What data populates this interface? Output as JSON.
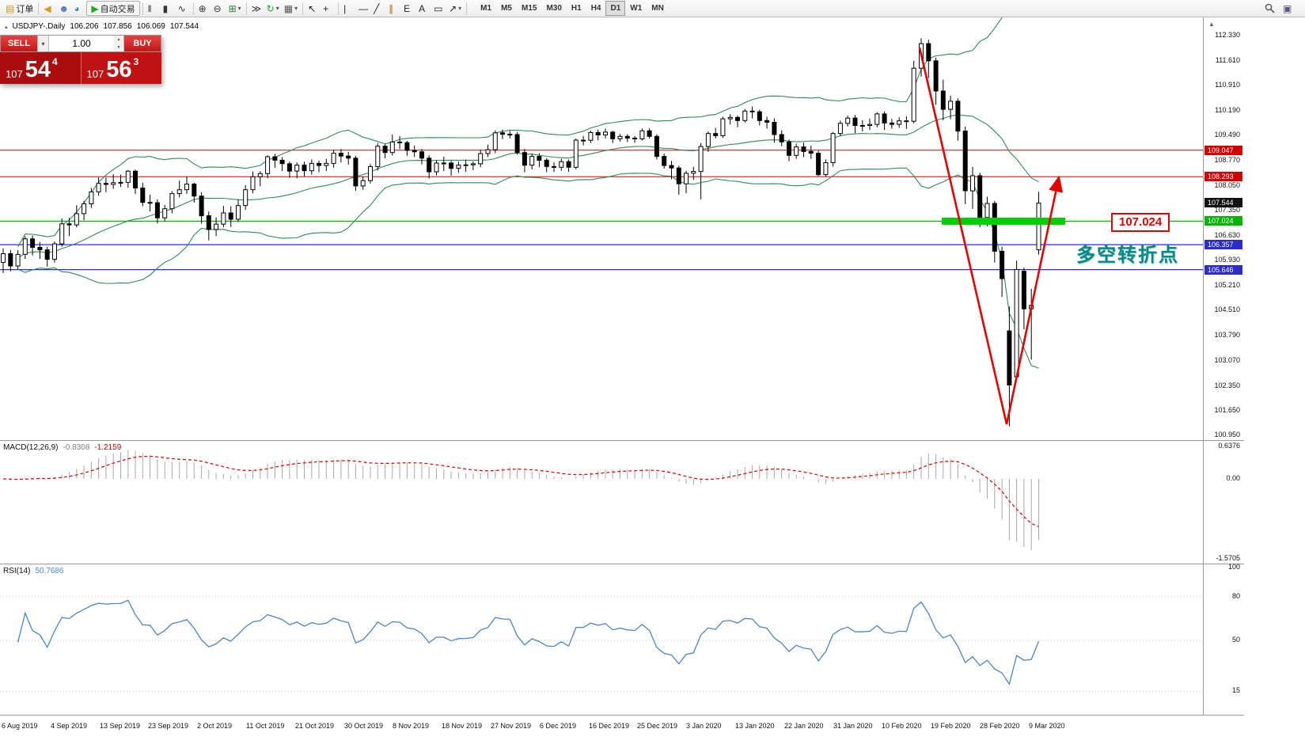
{
  "icons": {
    "caret_down": "▾",
    "stepper_up": "▲",
    "stepper_down": "▼",
    "windows_glyph": "▣",
    "scroll_arrow": "▲",
    "symbol_marker": "▴"
  },
  "colors": {
    "band": "#2E8B57",
    "bull": "#ffffff",
    "bear": "#000000",
    "macd_hist": "#a8a8a8",
    "macd_signal": "#dd0000",
    "rsi": "#4a86c8"
  },
  "toolbar": {
    "buttons": [
      {
        "name": "new-order-button",
        "glyph": "▤",
        "color": "#c99b1f",
        "label": "订单",
        "sep_after": true
      },
      {
        "name": "megaphone-button",
        "glyph": "◀",
        "color": "#d4a017"
      },
      {
        "name": "profile-button",
        "glyph": "☻",
        "color": "#4a78b8"
      },
      {
        "name": "community-button",
        "glyph": "◕",
        "color": "#3b8f8f"
      },
      {
        "name": "autotrading-button",
        "glyph": "▶",
        "color": "#1faa1f",
        "label": "自动交易",
        "boxed": true,
        "sep_after": true
      },
      {
        "name": "bar-chart-mode-button",
        "glyph": "‖",
        "color": "#333333"
      },
      {
        "name": "candlestick-mode-button",
        "glyph": "▮",
        "color": "#333333"
      },
      {
        "name": "line-chart-mode-button",
        "glyph": "∿",
        "color": "#333333",
        "sep_after": true
      },
      {
        "name": "zoom-in-button",
        "glyph": "⊕",
        "color": "#333333"
      },
      {
        "name": "zoom-out-button",
        "glyph": "⊖",
        "color": "#333333"
      },
      {
        "name": "tile-windows-button",
        "glyph": "⊞",
        "color": "#2f7d2f",
        "caret": true,
        "sep_after": true
      },
      {
        "name": "auto-scroll-button",
        "glyph": "≫",
        "color": "#333333"
      },
      {
        "name": "chart-shift-button",
        "glyph": "↻",
        "color": "#1faa1f",
        "caret": true
      },
      {
        "name": "templates-button",
        "glyph": "▦",
        "color": "#555555",
        "caret": true,
        "sep_after": true
      },
      {
        "name": "cursor-button",
        "glyph": "↖",
        "color": "#222222"
      },
      {
        "name": "crosshair-button",
        "glyph": "+",
        "color": "#222222",
        "sep_after": true
      },
      {
        "name": "vertical-line-button",
        "glyph": "|",
        "color": "#222222"
      },
      {
        "name": "horizontal-line-button",
        "glyph": "—",
        "color": "#222222"
      },
      {
        "name": "trendline-button",
        "glyph": "╱",
        "color": "#222222"
      },
      {
        "name": "channel-button",
        "glyph": "∥",
        "color": "#b06a00"
      },
      {
        "name": "fibonacci-button",
        "glyph": "E",
        "color": "#222222"
      },
      {
        "name": "text-button",
        "glyph": "A",
        "color": "#222222"
      },
      {
        "name": "label-button",
        "glyph": "▭",
        "color": "#222222"
      },
      {
        "name": "arrows-button",
        "glyph": "↗",
        "color": "#222222",
        "caret": true,
        "sep_after": true
      }
    ],
    "timeframes": {
      "list": [
        "M1",
        "M5",
        "M15",
        "M30",
        "H1",
        "H4",
        "D1",
        "W1",
        "MN"
      ],
      "active": "D1"
    }
  },
  "trade_panel": {
    "sell_label": "SELL",
    "buy_label": "BUY",
    "volume": "1.00",
    "sell_price": {
      "prefix": "107",
      "big": "54",
      "sup": "4"
    },
    "buy_price": {
      "prefix": "107",
      "big": "56",
      "sup": "3"
    }
  },
  "symbol_line": {
    "symbol": "USDJPY-,Daily",
    "open": "106.206",
    "high": "107.856",
    "low": "106.069",
    "close": "107.544"
  },
  "macd_panel": {
    "label": "MACD(12,26,9)",
    "value1": "-0.8308",
    "value2": "-1.2159",
    "axis": [
      "0.6376",
      "0.00",
      "-1.5705"
    ]
  },
  "rsi_panel": {
    "label": "RSI(14)",
    "value": "50.7686",
    "levels": [
      "100",
      "80",
      "50",
      "15"
    ]
  },
  "chart_data": {
    "type": "candlestick",
    "title": "USDJPY-,Daily",
    "price_axis_range": [
      100.95,
      112.33
    ],
    "price_ticks": [
      "112.330",
      "111.610",
      "110.910",
      "110.190",
      "109.490",
      "108.770",
      "108.050",
      "107.350",
      "106.630",
      "105.930",
      "105.210",
      "104.510",
      "103.790",
      "103.070",
      "102.350",
      "101.650",
      "100.950"
    ],
    "hlines": [
      {
        "label": "109.047",
        "price": 109.047,
        "color": "#d40000",
        "width": 1
      },
      {
        "label": "108.293",
        "price": 108.293,
        "color": "#d40000",
        "width": 1
      },
      {
        "label": "107.024",
        "price": 107.024,
        "color": "#00b400",
        "width": 1.2
      },
      {
        "label": "106.357",
        "price": 106.357,
        "color": "#2a2ad0",
        "width": 1.2
      },
      {
        "label": "105.646",
        "price": 105.646,
        "color": "#2a2ad0",
        "width": 1.2
      }
    ],
    "current_price_tag": {
      "label": "107.544",
      "price": 107.544,
      "bg": "#111111"
    },
    "annotations": {
      "callout": "107.024",
      "note": "多空转折点",
      "arrow_color": "#e60000",
      "highlight": {
        "price": 107.024,
        "color": "#00cf00"
      }
    },
    "rsi_level_values": [
      80,
      50,
      15
    ],
    "indicator_settings": {
      "bollinger": "20,2",
      "macd": "12,26,9",
      "rsi": "14"
    },
    "date_labels": [
      "6 Aug 2019",
      "4 Sep 2019",
      "13 Sep 2019",
      "23 Sep 2019",
      "2 Oct 2019",
      "11 Oct 2019",
      "21 Oct 2019",
      "30 Oct 2019",
      "8 Nov 2019",
      "18 Nov 2019",
      "27 Nov 2019",
      "6 Dec 2019",
      "16 Dec 2019",
      "25 Dec 2019",
      "3 Jan 2020",
      "13 Jan 2020",
      "22 Jan 2020",
      "31 Jan 2020",
      "10 Feb 2020",
      "19 Feb 2020",
      "28 Feb 2020",
      "9 Mar 2020"
    ],
    "candles": [
      [
        105.85,
        106.25,
        105.55,
        106.1
      ],
      [
        106.1,
        106.2,
        105.6,
        105.75
      ],
      [
        105.75,
        106.2,
        105.65,
        106.08
      ],
      [
        106.08,
        106.6,
        105.95,
        106.52
      ],
      [
        106.52,
        106.62,
        106.05,
        106.28
      ],
      [
        106.28,
        106.43,
        105.95,
        106.21
      ],
      [
        106.21,
        106.3,
        105.73,
        105.94
      ],
      [
        105.94,
        106.45,
        105.85,
        106.38
      ],
      [
        106.38,
        107.1,
        106.3,
        106.95
      ],
      [
        106.95,
        107.12,
        106.6,
        106.92
      ],
      [
        106.92,
        107.48,
        106.85,
        107.24
      ],
      [
        107.24,
        107.6,
        107.05,
        107.52
      ],
      [
        107.52,
        107.97,
        107.4,
        107.86
      ],
      [
        107.86,
        108.27,
        107.75,
        108.1
      ],
      [
        108.1,
        108.26,
        107.85,
        108.07
      ],
      [
        108.07,
        108.36,
        107.95,
        108.12
      ],
      [
        108.12,
        108.35,
        108.0,
        108.13
      ],
      [
        108.13,
        108.48,
        107.98,
        108.45
      ],
      [
        108.45,
        108.49,
        107.8,
        107.97
      ],
      [
        107.97,
        108.12,
        107.45,
        107.56
      ],
      [
        107.56,
        107.78,
        107.3,
        107.55
      ],
      [
        107.55,
        107.65,
        106.96,
        107.12
      ],
      [
        107.12,
        107.49,
        107.02,
        107.38
      ],
      [
        107.38,
        107.88,
        107.25,
        107.81
      ],
      [
        107.81,
        108.18,
        107.7,
        107.92
      ],
      [
        107.92,
        108.3,
        107.8,
        108.08
      ],
      [
        108.08,
        108.12,
        107.55,
        107.74
      ],
      [
        107.74,
        107.85,
        106.95,
        107.18
      ],
      [
        107.18,
        107.3,
        106.48,
        106.79
      ],
      [
        106.79,
        107.13,
        106.6,
        106.94
      ],
      [
        106.94,
        107.46,
        106.85,
        107.26
      ],
      [
        107.26,
        107.45,
        106.86,
        107.08
      ],
      [
        107.08,
        107.64,
        107.0,
        107.47
      ],
      [
        107.47,
        108.05,
        107.35,
        107.92
      ],
      [
        107.92,
        108.44,
        107.82,
        108.29
      ],
      [
        108.29,
        108.45,
        108.02,
        108.38
      ],
      [
        108.38,
        108.9,
        108.25,
        108.86
      ],
      [
        108.86,
        108.94,
        108.55,
        108.76
      ],
      [
        108.76,
        108.85,
        108.45,
        108.66
      ],
      [
        108.66,
        108.72,
        108.26,
        108.45
      ],
      [
        108.45,
        108.7,
        108.25,
        108.62
      ],
      [
        108.62,
        108.72,
        108.3,
        108.46
      ],
      [
        108.46,
        108.78,
        108.35,
        108.67
      ],
      [
        108.67,
        108.75,
        108.42,
        108.61
      ],
      [
        108.61,
        108.8,
        108.45,
        108.67
      ],
      [
        108.67,
        109.05,
        108.55,
        108.96
      ],
      [
        108.96,
        109.08,
        108.7,
        108.88
      ],
      [
        108.88,
        109.0,
        108.64,
        108.82
      ],
      [
        108.82,
        108.88,
        107.89,
        108.03
      ],
      [
        108.03,
        108.3,
        107.92,
        108.18
      ],
      [
        108.18,
        108.65,
        108.1,
        108.58
      ],
      [
        108.58,
        109.25,
        108.47,
        109.16
      ],
      [
        109.16,
        109.22,
        108.81,
        108.98
      ],
      [
        108.98,
        109.49,
        108.9,
        109.28
      ],
      [
        109.28,
        109.45,
        109.08,
        109.26
      ],
      [
        109.26,
        109.31,
        108.89,
        109.04
      ],
      [
        109.04,
        109.18,
        108.85,
        109.0
      ],
      [
        109.0,
        109.08,
        108.64,
        108.82
      ],
      [
        108.82,
        108.9,
        108.24,
        108.43
      ],
      [
        108.43,
        108.75,
        108.33,
        108.68
      ],
      [
        108.68,
        108.86,
        108.45,
        108.68
      ],
      [
        108.68,
        108.74,
        108.32,
        108.53
      ],
      [
        108.53,
        108.72,
        108.4,
        108.62
      ],
      [
        108.62,
        108.78,
        108.43,
        108.63
      ],
      [
        108.63,
        108.73,
        108.48,
        108.66
      ],
      [
        108.66,
        109.06,
        108.56,
        108.95
      ],
      [
        108.95,
        109.2,
        108.85,
        109.06
      ],
      [
        109.06,
        109.61,
        108.96,
        109.54
      ],
      [
        109.54,
        109.63,
        109.36,
        109.5
      ],
      [
        109.5,
        109.6,
        109.38,
        109.49
      ],
      [
        109.49,
        109.56,
        108.92,
        108.98
      ],
      [
        108.98,
        109.08,
        108.42,
        108.62
      ],
      [
        108.62,
        108.95,
        108.5,
        108.87
      ],
      [
        108.87,
        108.96,
        108.56,
        108.76
      ],
      [
        108.76,
        108.82,
        108.42,
        108.58
      ],
      [
        108.58,
        108.7,
        108.43,
        108.56
      ],
      [
        108.56,
        108.8,
        108.46,
        108.72
      ],
      [
        108.72,
        108.78,
        108.43,
        108.56
      ],
      [
        108.56,
        109.38,
        108.5,
        109.33
      ],
      [
        109.33,
        109.45,
        109.18,
        109.33
      ],
      [
        109.33,
        109.6,
        109.25,
        109.55
      ],
      [
        109.55,
        109.63,
        109.33,
        109.48
      ],
      [
        109.48,
        109.66,
        109.38,
        109.56
      ],
      [
        109.56,
        109.6,
        109.25,
        109.37
      ],
      [
        109.37,
        109.51,
        109.29,
        109.44
      ],
      [
        109.44,
        109.5,
        109.28,
        109.39
      ],
      [
        109.39,
        109.45,
        109.25,
        109.37
      ],
      [
        109.37,
        109.66,
        109.32,
        109.6
      ],
      [
        109.6,
        109.67,
        109.38,
        109.44
      ],
      [
        109.44,
        109.5,
        108.78,
        108.87
      ],
      [
        108.87,
        108.95,
        108.52,
        108.61
      ],
      [
        108.61,
        108.74,
        108.22,
        108.54
      ],
      [
        108.54,
        108.6,
        107.78,
        108.09
      ],
      [
        108.09,
        108.46,
        107.82,
        108.39
      ],
      [
        108.39,
        108.57,
        108.2,
        108.44
      ],
      [
        108.44,
        109.25,
        107.65,
        109.15
      ],
      [
        109.15,
        109.58,
        109.0,
        109.52
      ],
      [
        109.52,
        109.68,
        109.38,
        109.46
      ],
      [
        109.46,
        110.0,
        109.4,
        109.94
      ],
      [
        109.94,
        110.07,
        109.78,
        109.98
      ],
      [
        109.98,
        110.03,
        109.7,
        109.89
      ],
      [
        109.89,
        110.22,
        109.83,
        110.16
      ],
      [
        110.16,
        110.29,
        109.95,
        110.14
      ],
      [
        110.14,
        110.2,
        109.75,
        109.89
      ],
      [
        109.89,
        110.0,
        109.66,
        109.84
      ],
      [
        109.84,
        109.95,
        109.26,
        109.49
      ],
      [
        109.49,
        109.61,
        109.16,
        109.28
      ],
      [
        109.28,
        109.35,
        108.73,
        108.9
      ],
      [
        108.9,
        109.23,
        108.8,
        109.14
      ],
      [
        109.14,
        109.26,
        108.85,
        109.01
      ],
      [
        109.01,
        109.18,
        108.8,
        108.96
      ],
      [
        108.96,
        109.03,
        108.31,
        108.35
      ],
      [
        108.35,
        108.78,
        108.3,
        108.69
      ],
      [
        108.69,
        109.56,
        108.58,
        109.52
      ],
      [
        109.52,
        109.89,
        109.45,
        109.81
      ],
      [
        109.81,
        110.03,
        109.72,
        109.96
      ],
      [
        109.96,
        110.05,
        109.53,
        109.75
      ],
      [
        109.75,
        109.9,
        109.58,
        109.75
      ],
      [
        109.75,
        109.94,
        109.62,
        109.78
      ],
      [
        109.78,
        110.13,
        109.7,
        110.08
      ],
      [
        110.08,
        110.15,
        109.62,
        109.82
      ],
      [
        109.82,
        109.94,
        109.66,
        109.78
      ],
      [
        109.78,
        109.98,
        109.68,
        109.88
      ],
      [
        109.88,
        110.01,
        109.65,
        109.87
      ],
      [
        109.87,
        111.59,
        109.81,
        111.38
      ],
      [
        111.38,
        112.23,
        111.14,
        112.08
      ],
      [
        112.08,
        112.19,
        111.1,
        111.59
      ],
      [
        111.59,
        111.68,
        110.34,
        110.73
      ],
      [
        110.73,
        111.05,
        109.9,
        110.21
      ],
      [
        110.21,
        110.6,
        109.93,
        110.44
      ],
      [
        110.44,
        110.52,
        109.32,
        109.59
      ],
      [
        109.59,
        109.72,
        107.51,
        107.89
      ],
      [
        107.89,
        108.57,
        107.38,
        108.32
      ],
      [
        108.32,
        108.4,
        106.85,
        107.13
      ],
      [
        107.13,
        107.72,
        106.88,
        107.53
      ],
      [
        107.53,
        107.6,
        105.85,
        106.17
      ],
      [
        106.17,
        106.3,
        104.87,
        105.39
      ],
      [
        103.9,
        104.6,
        101.18,
        102.36
      ],
      [
        102.6,
        105.9,
        102.5,
        105.65
      ],
      [
        105.6,
        105.7,
        103.95,
        104.53
      ],
      [
        104.53,
        105.1,
        103.08,
        104.63
      ],
      [
        106.21,
        107.86,
        106.07,
        107.54
      ]
    ]
  }
}
